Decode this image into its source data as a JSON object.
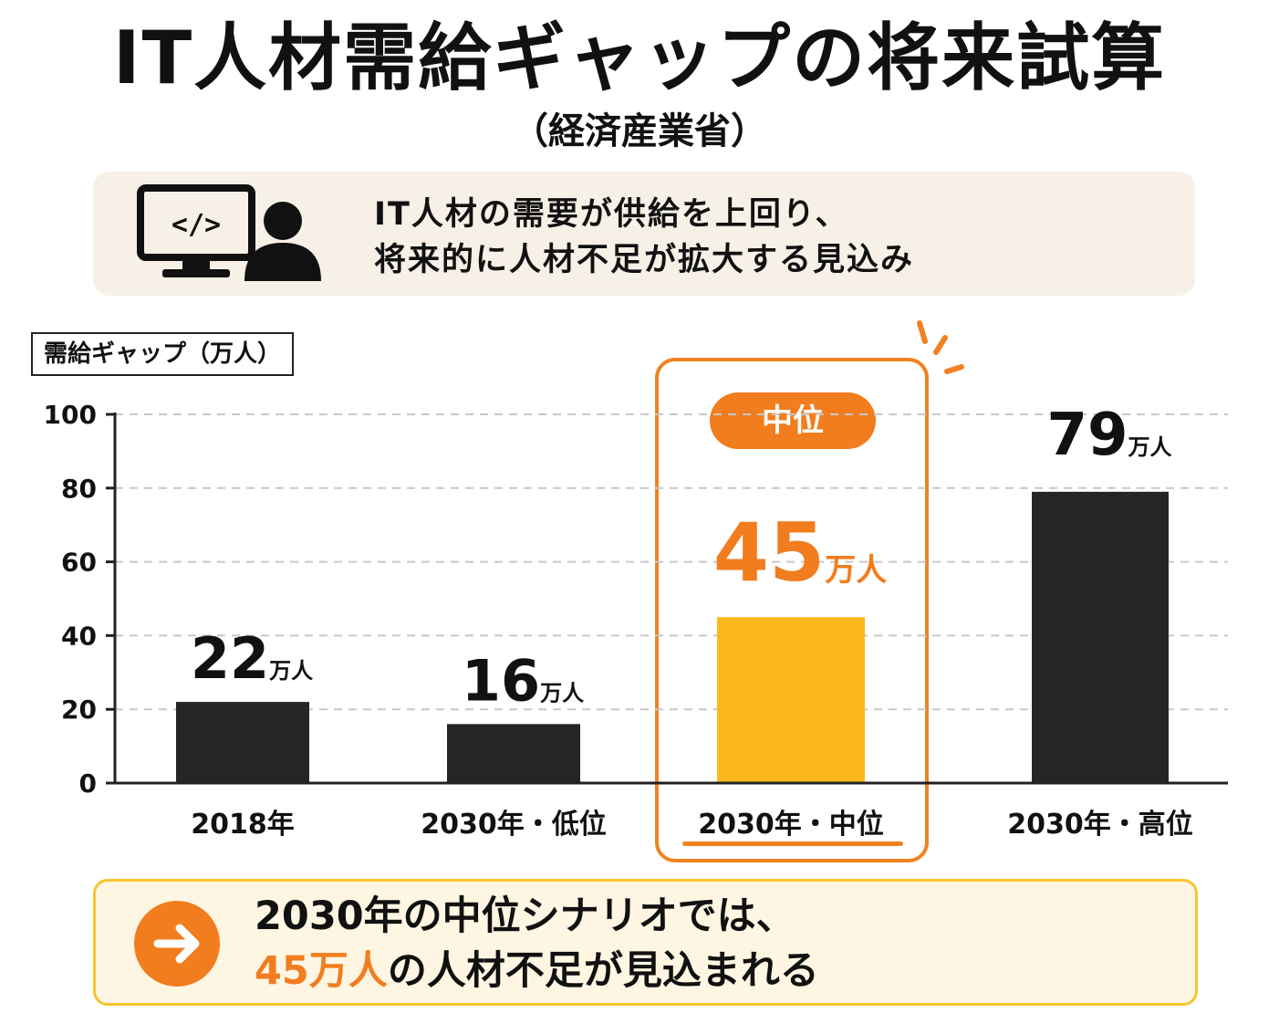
{
  "header": {
    "title": "IT人材需給ギャップの将来試算",
    "subtitle": "（経済産業省）"
  },
  "summary": {
    "icon": "developer-code-monitor-icon",
    "line1": "IT人材の需要が供給を上回り、",
    "line2": "将来的に人材不足が拡大する見込み"
  },
  "highlight": {
    "badge": "中位"
  },
  "conclusion": {
    "icon": "arrow-right-icon",
    "line1": "2030年の中位シナリオでは、",
    "line2_accent": "45万人",
    "line2_rest": "の人材不足が見込まれる"
  },
  "colors": {
    "bar_dark": "#252525",
    "bar_highlight": "#fbb81b",
    "accent_orange": "#f27d1e"
  },
  "chart_data": {
    "type": "bar",
    "ylabel": "需給ギャップ（万人）",
    "ylim": [
      0,
      100
    ],
    "yticks": [
      "0",
      "20",
      "40",
      "60",
      "80",
      "100"
    ],
    "grid": true,
    "categories": [
      "2018年",
      "2030年・低位",
      "2030年・中位",
      "2030年・高位"
    ],
    "values": [
      22,
      16,
      45,
      79
    ],
    "value_labels": [
      "22",
      "16",
      "45",
      "79"
    ],
    "unit": "万人",
    "highlight_index": 2
  }
}
